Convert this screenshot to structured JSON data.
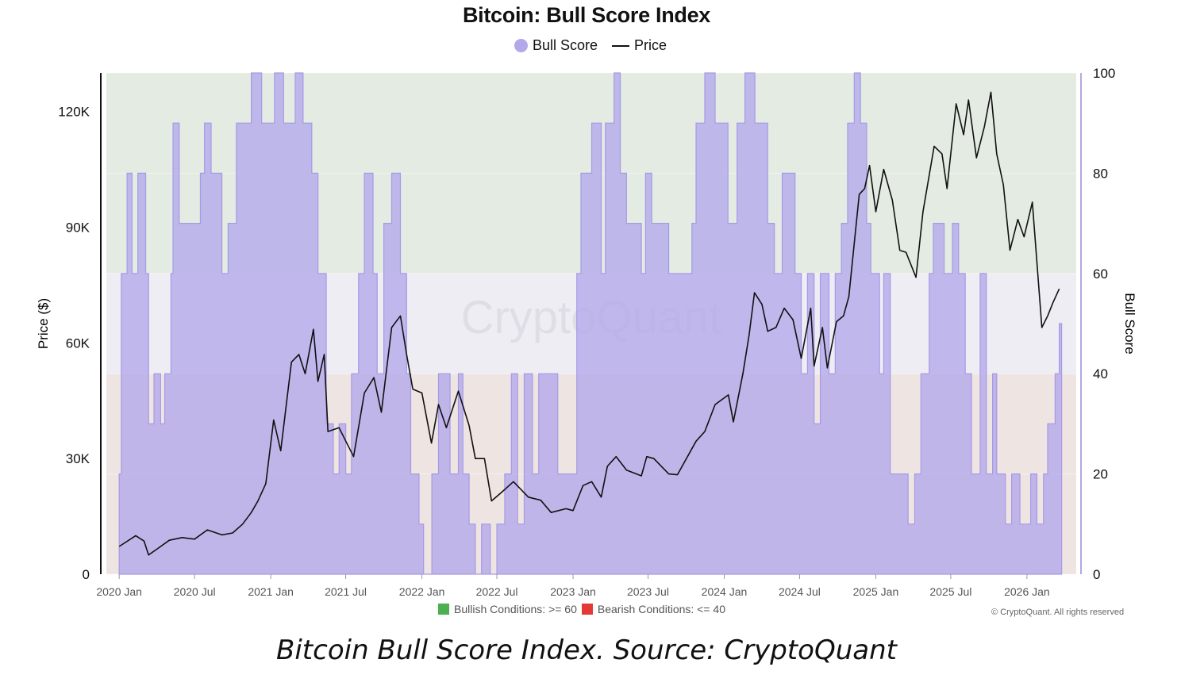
{
  "title": "Bitcoin: Bull Score Index",
  "legend": {
    "bull_label": "Bull Score",
    "price_label": "Price"
  },
  "colors": {
    "bull": "#b3a8ea",
    "bull_line": "#a69ae6",
    "bullish_zone": "#e3ebe2",
    "neutral_zone": "#eeedf3",
    "bearish_zone": "#eee4e2",
    "price": "#111111",
    "bullish_marker": "#4caf50",
    "bearish_marker": "#e53935"
  },
  "watermark": "CryptoQuant",
  "conditions": {
    "bullish": "Bullish Conditions: >= 60",
    "bearish": "Bearish Conditions: <= 40"
  },
  "copyright": "© CryptoQuant. All rights reserved",
  "caption": "Bitcoin Bull Score Index. Source: CryptoQuant",
  "chart_data": {
    "type": "area+line",
    "xlim": [
      "2019-12-01",
      "2026-04-30"
    ],
    "x_ticks": [
      {
        "date": "2020-01-01",
        "label": "2020 Jan"
      },
      {
        "date": "2020-07-01",
        "label": "2020 Jul"
      },
      {
        "date": "2021-01-01",
        "label": "2021 Jan"
      },
      {
        "date": "2021-07-01",
        "label": "2021 Jul"
      },
      {
        "date": "2022-01-01",
        "label": "2022 Jan"
      },
      {
        "date": "2022-07-01",
        "label": "2022 Jul"
      },
      {
        "date": "2023-01-01",
        "label": "2023 Jan"
      },
      {
        "date": "2023-07-01",
        "label": "2023 Jul"
      },
      {
        "date": "2024-01-01",
        "label": "2024 Jan"
      },
      {
        "date": "2024-07-01",
        "label": "2024 Jul"
      },
      {
        "date": "2025-01-01",
        "label": "2025 Jan"
      },
      {
        "date": "2025-07-01",
        "label": "2025 Jul"
      },
      {
        "date": "2026-01-01",
        "label": "2026 Jan"
      }
    ],
    "y_left": {
      "label": "Price ($)",
      "lim": [
        0,
        130000
      ],
      "ticks": [
        {
          "v": 0,
          "label": "0"
        },
        {
          "v": 30000,
          "label": "30K"
        },
        {
          "v": 60000,
          "label": "60K"
        },
        {
          "v": 90000,
          "label": "90K"
        },
        {
          "v": 120000,
          "label": "120K"
        }
      ]
    },
    "y_right": {
      "label": "Bull Score",
      "lim": [
        0,
        100
      ],
      "ticks": [
        {
          "v": 0,
          "label": "0"
        },
        {
          "v": 20,
          "label": "20"
        },
        {
          "v": 40,
          "label": "40"
        },
        {
          "v": 60,
          "label": "60"
        },
        {
          "v": 80,
          "label": "80"
        },
        {
          "v": 100,
          "label": "100"
        }
      ]
    },
    "zones": {
      "bullish_min": 60,
      "bearish_max": 40
    },
    "series": [
      {
        "name": "Bull Score",
        "axis": "right",
        "points": [
          [
            "2020-01-01",
            20
          ],
          [
            "2020-01-06",
            60
          ],
          [
            "2020-01-20",
            80
          ],
          [
            "2020-02-01",
            60
          ],
          [
            "2020-02-15",
            80
          ],
          [
            "2020-03-05",
            60
          ],
          [
            "2020-03-12",
            30
          ],
          [
            "2020-03-25",
            40
          ],
          [
            "2020-04-10",
            30
          ],
          [
            "2020-04-20",
            40
          ],
          [
            "2020-05-05",
            60
          ],
          [
            "2020-05-10",
            90
          ],
          [
            "2020-05-25",
            70
          ],
          [
            "2020-06-10",
            70
          ],
          [
            "2020-07-01",
            70
          ],
          [
            "2020-07-15",
            80
          ],
          [
            "2020-07-25",
            90
          ],
          [
            "2020-08-10",
            80
          ],
          [
            "2020-09-05",
            60
          ],
          [
            "2020-09-20",
            70
          ],
          [
            "2020-10-10",
            90
          ],
          [
            "2020-11-01",
            90
          ],
          [
            "2020-11-15",
            100
          ],
          [
            "2020-12-10",
            90
          ],
          [
            "2021-01-10",
            100
          ],
          [
            "2021-02-01",
            90
          ],
          [
            "2021-03-01",
            100
          ],
          [
            "2021-03-20",
            90
          ],
          [
            "2021-04-10",
            80
          ],
          [
            "2021-04-25",
            60
          ],
          [
            "2021-05-15",
            30
          ],
          [
            "2021-06-01",
            20
          ],
          [
            "2021-06-15",
            30
          ],
          [
            "2021-07-01",
            20
          ],
          [
            "2021-07-15",
            40
          ],
          [
            "2021-08-01",
            60
          ],
          [
            "2021-08-15",
            80
          ],
          [
            "2021-09-05",
            60
          ],
          [
            "2021-09-15",
            40
          ],
          [
            "2021-10-01",
            70
          ],
          [
            "2021-10-20",
            80
          ],
          [
            "2021-11-10",
            60
          ],
          [
            "2021-11-25",
            40
          ],
          [
            "2021-12-05",
            20
          ],
          [
            "2021-12-25",
            10
          ],
          [
            "2022-01-05",
            0
          ],
          [
            "2022-01-25",
            20
          ],
          [
            "2022-02-10",
            40
          ],
          [
            "2022-03-10",
            20
          ],
          [
            "2022-03-30",
            40
          ],
          [
            "2022-04-10",
            20
          ],
          [
            "2022-04-25",
            10
          ],
          [
            "2022-05-10",
            0
          ],
          [
            "2022-05-25",
            10
          ],
          [
            "2022-06-15",
            0
          ],
          [
            "2022-07-01",
            10
          ],
          [
            "2022-07-20",
            20
          ],
          [
            "2022-08-05",
            40
          ],
          [
            "2022-08-20",
            10
          ],
          [
            "2022-09-05",
            40
          ],
          [
            "2022-09-25",
            20
          ],
          [
            "2022-10-10",
            40
          ],
          [
            "2022-10-20",
            40
          ],
          [
            "2022-11-25",
            20
          ],
          [
            "2022-12-10",
            20
          ],
          [
            "2023-01-01",
            20
          ],
          [
            "2023-01-10",
            60
          ],
          [
            "2023-01-20",
            80
          ],
          [
            "2023-02-15",
            90
          ],
          [
            "2023-03-10",
            60
          ],
          [
            "2023-03-20",
            90
          ],
          [
            "2023-04-10",
            100
          ],
          [
            "2023-04-25",
            80
          ],
          [
            "2023-05-10",
            70
          ],
          [
            "2023-06-15",
            60
          ],
          [
            "2023-06-25",
            80
          ],
          [
            "2023-07-10",
            70
          ],
          [
            "2023-08-20",
            60
          ],
          [
            "2023-09-15",
            60
          ],
          [
            "2023-10-15",
            70
          ],
          [
            "2023-10-25",
            90
          ],
          [
            "2023-11-15",
            100
          ],
          [
            "2023-12-10",
            90
          ],
          [
            "2024-01-10",
            70
          ],
          [
            "2024-02-01",
            90
          ],
          [
            "2024-02-20",
            100
          ],
          [
            "2024-03-15",
            90
          ],
          [
            "2024-04-15",
            70
          ],
          [
            "2024-05-01",
            60
          ],
          [
            "2024-05-20",
            80
          ],
          [
            "2024-06-20",
            60
          ],
          [
            "2024-07-05",
            40
          ],
          [
            "2024-07-20",
            60
          ],
          [
            "2024-08-05",
            30
          ],
          [
            "2024-08-20",
            60
          ],
          [
            "2024-09-10",
            40
          ],
          [
            "2024-09-25",
            60
          ],
          [
            "2024-10-10",
            70
          ],
          [
            "2024-10-25",
            90
          ],
          [
            "2024-11-10",
            100
          ],
          [
            "2024-11-25",
            90
          ],
          [
            "2024-12-10",
            70
          ],
          [
            "2024-12-20",
            60
          ],
          [
            "2025-01-10",
            40
          ],
          [
            "2025-01-20",
            60
          ],
          [
            "2025-02-05",
            20
          ],
          [
            "2025-03-10",
            20
          ],
          [
            "2025-03-20",
            10
          ],
          [
            "2025-04-05",
            20
          ],
          [
            "2025-04-20",
            40
          ],
          [
            "2025-05-10",
            60
          ],
          [
            "2025-05-20",
            70
          ],
          [
            "2025-06-15",
            60
          ],
          [
            "2025-07-05",
            70
          ],
          [
            "2025-07-20",
            60
          ],
          [
            "2025-08-05",
            40
          ],
          [
            "2025-08-20",
            20
          ],
          [
            "2025-09-10",
            60
          ],
          [
            "2025-09-25",
            20
          ],
          [
            "2025-10-10",
            40
          ],
          [
            "2025-10-20",
            20
          ],
          [
            "2025-11-10",
            10
          ],
          [
            "2025-11-25",
            20
          ],
          [
            "2025-12-15",
            10
          ],
          [
            "2026-01-10",
            20
          ],
          [
            "2026-01-25",
            10
          ],
          [
            "2026-02-10",
            20
          ],
          [
            "2026-02-20",
            30
          ],
          [
            "2026-03-10",
            40
          ],
          [
            "2026-03-20",
            50
          ]
        ]
      },
      {
        "name": "Price",
        "axis": "left",
        "points": [
          [
            "2020-01-01",
            7200
          ],
          [
            "2020-02-10",
            10000
          ],
          [
            "2020-03-01",
            8600
          ],
          [
            "2020-03-12",
            5000
          ],
          [
            "2020-04-01",
            6500
          ],
          [
            "2020-05-01",
            8800
          ],
          [
            "2020-06-01",
            9500
          ],
          [
            "2020-07-01",
            9100
          ],
          [
            "2020-08-01",
            11500
          ],
          [
            "2020-09-05",
            10200
          ],
          [
            "2020-10-01",
            10700
          ],
          [
            "2020-10-25",
            13000
          ],
          [
            "2020-11-15",
            16000
          ],
          [
            "2020-12-01",
            19000
          ],
          [
            "2020-12-20",
            23500
          ],
          [
            "2021-01-08",
            40000
          ],
          [
            "2021-01-25",
            32000
          ],
          [
            "2021-02-20",
            55000
          ],
          [
            "2021-03-10",
            57000
          ],
          [
            "2021-03-25",
            52000
          ],
          [
            "2021-04-14",
            63500
          ],
          [
            "2021-04-25",
            50000
          ],
          [
            "2021-05-10",
            57000
          ],
          [
            "2021-05-19",
            37000
          ],
          [
            "2021-06-15",
            38000
          ],
          [
            "2021-07-20",
            30500
          ],
          [
            "2021-08-15",
            47000
          ],
          [
            "2021-09-07",
            51000
          ],
          [
            "2021-09-25",
            42000
          ],
          [
            "2021-10-20",
            64000
          ],
          [
            "2021-11-10",
            67000
          ],
          [
            "2021-11-25",
            57000
          ],
          [
            "2021-12-10",
            48000
          ],
          [
            "2022-01-01",
            47000
          ],
          [
            "2022-01-24",
            34000
          ],
          [
            "2022-02-10",
            44000
          ],
          [
            "2022-03-01",
            38000
          ],
          [
            "2022-03-30",
            47500
          ],
          [
            "2022-04-25",
            38500
          ],
          [
            "2022-05-10",
            30000
          ],
          [
            "2022-06-01",
            30000
          ],
          [
            "2022-06-18",
            19000
          ],
          [
            "2022-07-10",
            21000
          ],
          [
            "2022-08-10",
            24000
          ],
          [
            "2022-09-15",
            20000
          ],
          [
            "2022-10-15",
            19200
          ],
          [
            "2022-11-09",
            16000
          ],
          [
            "2022-12-15",
            17000
          ],
          [
            "2023-01-01",
            16500
          ],
          [
            "2023-01-25",
            23000
          ],
          [
            "2023-02-15",
            24000
          ],
          [
            "2023-03-10",
            20000
          ],
          [
            "2023-03-25",
            28000
          ],
          [
            "2023-04-15",
            30500
          ],
          [
            "2023-05-10",
            27000
          ],
          [
            "2023-06-15",
            25500
          ],
          [
            "2023-06-28",
            30500
          ],
          [
            "2023-07-15",
            30000
          ],
          [
            "2023-08-20",
            26000
          ],
          [
            "2023-09-10",
            25800
          ],
          [
            "2023-10-25",
            34500
          ],
          [
            "2023-11-15",
            37000
          ],
          [
            "2023-12-10",
            44000
          ],
          [
            "2024-01-11",
            46500
          ],
          [
            "2024-01-23",
            39500
          ],
          [
            "2024-02-15",
            52000
          ],
          [
            "2024-03-01",
            62000
          ],
          [
            "2024-03-14",
            73000
          ],
          [
            "2024-04-01",
            70000
          ],
          [
            "2024-04-15",
            63000
          ],
          [
            "2024-05-05",
            64000
          ],
          [
            "2024-05-25",
            69000
          ],
          [
            "2024-06-15",
            66000
          ],
          [
            "2024-07-05",
            56000
          ],
          [
            "2024-07-28",
            69000
          ],
          [
            "2024-08-05",
            54000
          ],
          [
            "2024-08-25",
            64000
          ],
          [
            "2024-09-06",
            53500
          ],
          [
            "2024-09-28",
            65500
          ],
          [
            "2024-10-15",
            67000
          ],
          [
            "2024-10-28",
            72000
          ],
          [
            "2024-11-12",
            88000
          ],
          [
            "2024-11-22",
            98500
          ],
          [
            "2024-12-05",
            100000
          ],
          [
            "2024-12-17",
            106000
          ],
          [
            "2025-01-01",
            94000
          ],
          [
            "2025-01-20",
            105000
          ],
          [
            "2025-02-10",
            97000
          ],
          [
            "2025-02-28",
            84000
          ],
          [
            "2025-03-15",
            83500
          ],
          [
            "2025-04-08",
            77000
          ],
          [
            "2025-04-25",
            94000
          ],
          [
            "2025-05-22",
            111000
          ],
          [
            "2025-06-10",
            109000
          ],
          [
            "2025-06-22",
            100000
          ],
          [
            "2025-07-14",
            122000
          ],
          [
            "2025-08-01",
            114000
          ],
          [
            "2025-08-13",
            123000
          ],
          [
            "2025-09-01",
            108000
          ],
          [
            "2025-09-20",
            116000
          ],
          [
            "2025-10-06",
            125000
          ],
          [
            "2025-10-20",
            109000
          ],
          [
            "2025-11-05",
            101000
          ],
          [
            "2025-11-21",
            84000
          ],
          [
            "2025-12-10",
            92000
          ],
          [
            "2025-12-25",
            87500
          ],
          [
            "2026-01-14",
            96500
          ],
          [
            "2026-02-06",
            64000
          ],
          [
            "2026-02-20",
            67000
          ],
          [
            "2026-03-05",
            70500
          ],
          [
            "2026-03-20",
            74000
          ]
        ]
      }
    ]
  }
}
